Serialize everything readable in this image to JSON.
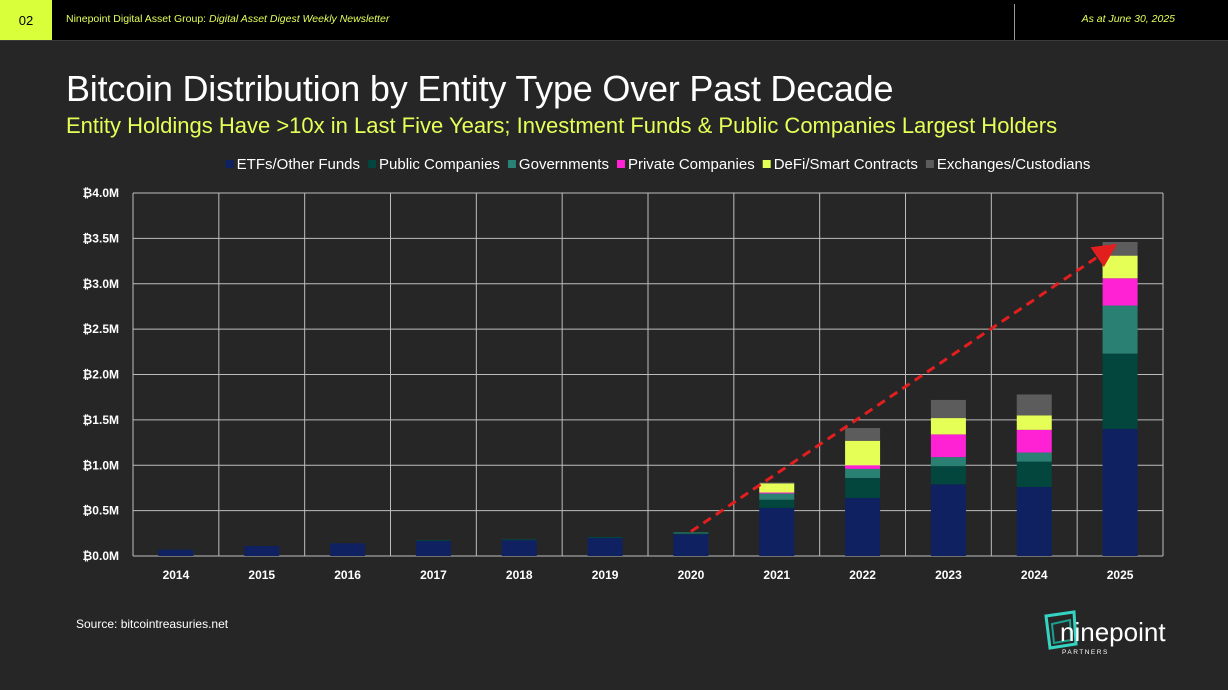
{
  "header": {
    "page_number": "02",
    "org": "Ninepoint Digital Asset Group: ",
    "newsletter": "Digital Asset Digest Weekly Newsletter",
    "date": "As at June 30, 2025"
  },
  "title": "Bitcoin Distribution by Entity Type Over Past Decade",
  "subtitle": "Entity Holdings Have >10x in Last Five Years; Investment Funds & Public Companies Largest Holders",
  "source": "Source: bitcointreasuries.net",
  "logo": {
    "name": "ninepoint",
    "tagline": "PARTNERS"
  },
  "colors": {
    "accent": "#e6ff57",
    "background": "#262626",
    "page_tab": "#d9ff3b",
    "trend_arrow": "#e31e1e"
  },
  "chart_data": {
    "type": "bar",
    "stacked": true,
    "title": "",
    "xlabel": "",
    "ylabel": "",
    "legend_position": "top",
    "grid": true,
    "categories": [
      "2014",
      "2015",
      "2016",
      "2017",
      "2018",
      "2019",
      "2020",
      "2021",
      "2022",
      "2023",
      "2024",
      "2025"
    ],
    "ylim": [
      0,
      4000000
    ],
    "yticks": [
      0,
      500000,
      1000000,
      1500000,
      2000000,
      2500000,
      3000000,
      3500000,
      4000000
    ],
    "ytick_labels": [
      "₿0.0M",
      "₿0.5M",
      "₿1.0M",
      "₿1.5M",
      "₿2.0M",
      "₿2.5M",
      "₿3.0M",
      "₿3.5M",
      "₿4.0M"
    ],
    "series": [
      {
        "name": "ETFs/Other Funds",
        "color": "#0f2161",
        "values": [
          70000,
          110000,
          140000,
          170000,
          180000,
          200000,
          240000,
          530000,
          640000,
          790000,
          760000,
          1400000
        ]
      },
      {
        "name": "Public Companies",
        "color": "#02463d",
        "values": [
          0,
          0,
          0,
          5000,
          5000,
          10000,
          15000,
          90000,
          220000,
          200000,
          280000,
          830000
        ]
      },
      {
        "name": "Governments",
        "color": "#2b8074",
        "values": [
          0,
          0,
          0,
          0,
          0,
          0,
          5000,
          70000,
          100000,
          100000,
          100000,
          530000
        ]
      },
      {
        "name": "Private Companies",
        "color": "#ff22d5",
        "values": [
          0,
          0,
          0,
          0,
          0,
          0,
          0,
          10000,
          40000,
          250000,
          250000,
          300000
        ]
      },
      {
        "name": "DeFi/Smart Contracts",
        "color": "#e6ff57",
        "values": [
          0,
          0,
          0,
          0,
          0,
          0,
          0,
          100000,
          270000,
          180000,
          160000,
          250000
        ]
      },
      {
        "name": "Exchanges/Custodians",
        "color": "#5c5c5c",
        "values": [
          0,
          0,
          0,
          0,
          0,
          0,
          0,
          10000,
          140000,
          200000,
          230000,
          150000
        ]
      }
    ],
    "annotations": [
      {
        "type": "trend-arrow",
        "style": "dashed",
        "color": "#e31e1e",
        "from": {
          "x": "2020",
          "y": 270000
        },
        "to": {
          "x": "2025",
          "y": 3470000
        }
      }
    ]
  }
}
